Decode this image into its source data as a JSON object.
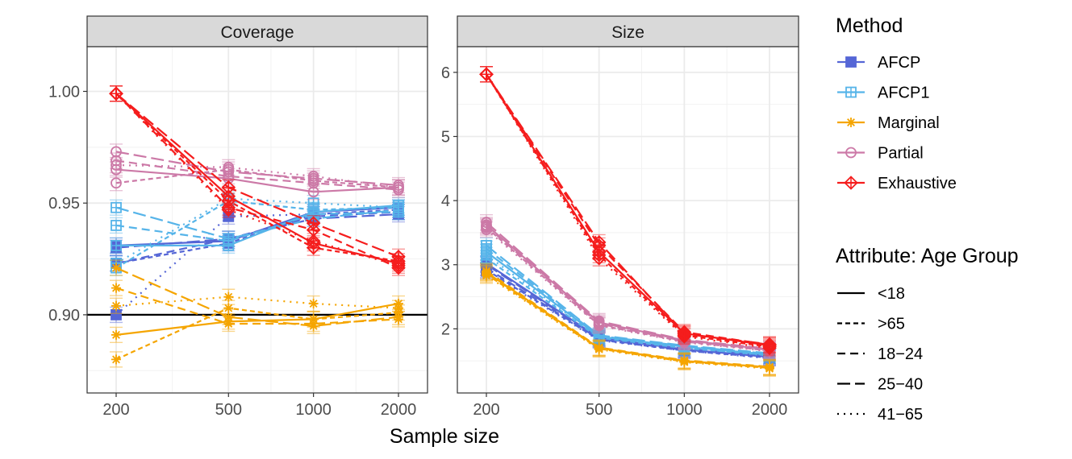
{
  "chart_data": {
    "type": "line",
    "xlabel": "Sample size",
    "x": [
      200,
      500,
      1000,
      2000
    ],
    "x_scale": "log",
    "panels": [
      {
        "title": "Coverage",
        "ylim": [
          0.865,
          1.02
        ],
        "yticks": [
          "0.90",
          "0.95",
          "1.00"
        ],
        "reference_line": 0.9,
        "series": [
          {
            "method": "AFCP",
            "group": "<18",
            "values": [
              0.931,
              0.933,
              0.946,
              0.948
            ]
          },
          {
            "method": "AFCP",
            "group": ">65",
            "values": [
              0.923,
              0.932,
              0.945,
              0.947
            ]
          },
          {
            "method": "AFCP",
            "group": "18-24",
            "values": [
              0.923,
              0.934,
              0.944,
              0.946
            ]
          },
          {
            "method": "AFCP",
            "group": "25-40",
            "values": [
              0.93,
              0.934,
              0.943,
              0.945
            ]
          },
          {
            "method": "AFCP",
            "group": "41-65",
            "values": [
              0.9,
              0.944,
              0.945,
              0.946
            ]
          },
          {
            "method": "AFCP1",
            "group": "<18",
            "values": [
              0.931,
              0.931,
              0.946,
              0.949
            ]
          },
          {
            "method": "AFCP1",
            "group": ">65",
            "values": [
              0.921,
              0.951,
              0.947,
              0.948
            ]
          },
          {
            "method": "AFCP1",
            "group": "18-24",
            "values": [
              0.94,
              0.933,
              0.945,
              0.946
            ]
          },
          {
            "method": "AFCP1",
            "group": "25-40",
            "values": [
              0.948,
              0.934,
              0.943,
              0.947
            ]
          },
          {
            "method": "AFCP1",
            "group": "41-65",
            "values": [
              0.923,
              0.952,
              0.95,
              0.948
            ]
          },
          {
            "method": "Marginal",
            "group": "<18",
            "values": [
              0.891,
              0.897,
              0.898,
              0.905
            ]
          },
          {
            "method": "Marginal",
            "group": ">65",
            "values": [
              0.88,
              0.903,
              0.898,
              0.901
            ]
          },
          {
            "method": "Marginal",
            "group": "18-24",
            "values": [
              0.912,
              0.896,
              0.896,
              0.898
            ]
          },
          {
            "method": "Marginal",
            "group": "25-40",
            "values": [
              0.921,
              0.899,
              0.895,
              0.899
            ]
          },
          {
            "method": "Marginal",
            "group": "41-65",
            "values": [
              0.904,
              0.908,
              0.905,
              0.903
            ]
          },
          {
            "method": "Partial",
            "group": "<18",
            "values": [
              0.965,
              0.961,
              0.955,
              0.957
            ]
          },
          {
            "method": "Partial",
            "group": ">65",
            "values": [
              0.959,
              0.965,
              0.96,
              0.957
            ]
          },
          {
            "method": "Partial",
            "group": "18-24",
            "values": [
              0.969,
              0.962,
              0.959,
              0.956
            ]
          },
          {
            "method": "Partial",
            "group": "25-40",
            "values": [
              0.973,
              0.964,
              0.961,
              0.958
            ]
          },
          {
            "method": "Partial",
            "group": "41-65",
            "values": [
              0.967,
              0.966,
              0.962,
              0.957
            ]
          },
          {
            "method": "Exhaustive",
            "group": "<18",
            "values": [
              0.999,
              0.953,
              0.932,
              0.923
            ]
          },
          {
            "method": "Exhaustive",
            "group": ">65",
            "values": [
              0.999,
              0.951,
              0.93,
              0.924
            ]
          },
          {
            "method": "Exhaustive",
            "group": "18-24",
            "values": [
              0.999,
              0.948,
              0.938,
              0.921
            ]
          },
          {
            "method": "Exhaustive",
            "group": "25-40",
            "values": [
              0.999,
              0.957,
              0.941,
              0.926
            ]
          },
          {
            "method": "Exhaustive",
            "group": "41-65",
            "values": [
              0.999,
              0.947,
              0.933,
              0.922
            ]
          }
        ]
      },
      {
        "title": "Size",
        "ylim": [
          1.0,
          6.4
        ],
        "yticks": [
          "2",
          "3",
          "4",
          "5",
          "6"
        ],
        "series": [
          {
            "method": "AFCP",
            "group": "<18",
            "values": [
              3.02,
              1.86,
              1.68,
              1.56
            ]
          },
          {
            "method": "AFCP",
            "group": ">65",
            "values": [
              2.92,
              1.83,
              1.66,
              1.55
            ]
          },
          {
            "method": "AFCP",
            "group": "18-24",
            "values": [
              2.95,
              1.84,
              1.67,
              1.57
            ]
          },
          {
            "method": "AFCP",
            "group": "25-40",
            "values": [
              3.0,
              1.85,
              1.69,
              1.58
            ]
          },
          {
            "method": "AFCP",
            "group": "41-65",
            "values": [
              2.9,
              1.82,
              1.66,
              1.54
            ]
          },
          {
            "method": "AFCP1",
            "group": "<18",
            "values": [
              3.2,
              1.88,
              1.72,
              1.6
            ]
          },
          {
            "method": "AFCP1",
            "group": ">65",
            "values": [
              3.1,
              1.86,
              1.7,
              1.59
            ]
          },
          {
            "method": "AFCP1",
            "group": "18-24",
            "values": [
              3.25,
              1.89,
              1.73,
              1.61
            ]
          },
          {
            "method": "AFCP1",
            "group": "25-40",
            "values": [
              3.3,
              1.9,
              1.74,
              1.62
            ]
          },
          {
            "method": "AFCP1",
            "group": "41-65",
            "values": [
              3.15,
              1.87,
              1.71,
              1.58
            ]
          },
          {
            "method": "Marginal",
            "group": "<18",
            "values": [
              2.88,
              1.7,
              1.5,
              1.4
            ]
          },
          {
            "method": "Marginal",
            "group": ">65",
            "values": [
              2.85,
              1.69,
              1.49,
              1.39
            ]
          },
          {
            "method": "Marginal",
            "group": "18-24",
            "values": [
              2.9,
              1.71,
              1.51,
              1.41
            ]
          },
          {
            "method": "Marginal",
            "group": "25-40",
            "values": [
              2.87,
              1.7,
              1.5,
              1.4
            ]
          },
          {
            "method": "Marginal",
            "group": "41-65",
            "values": [
              2.83,
              1.68,
              1.48,
              1.38
            ]
          },
          {
            "method": "Partial",
            "group": "<18",
            "values": [
              3.62,
              2.1,
              1.82,
              1.68
            ]
          },
          {
            "method": "Partial",
            "group": ">65",
            "values": [
              3.58,
              2.06,
              1.8,
              1.66
            ]
          },
          {
            "method": "Partial",
            "group": "18-24",
            "values": [
              3.6,
              2.08,
              1.81,
              1.67
            ]
          },
          {
            "method": "Partial",
            "group": "25-40",
            "values": [
              3.66,
              2.12,
              1.83,
              1.69
            ]
          },
          {
            "method": "Partial",
            "group": "41-65",
            "values": [
              3.55,
              2.05,
              1.79,
              1.65
            ]
          },
          {
            "method": "Exhaustive",
            "group": "<18",
            "values": [
              5.97,
              3.2,
              1.93,
              1.74
            ]
          },
          {
            "method": "Exhaustive",
            "group": ">65",
            "values": [
              5.97,
              3.15,
              1.9,
              1.72
            ]
          },
          {
            "method": "Exhaustive",
            "group": "18-24",
            "values": [
              5.97,
              3.3,
              1.95,
              1.75
            ]
          },
          {
            "method": "Exhaustive",
            "group": "25-40",
            "values": [
              5.97,
              3.35,
              1.92,
              1.76
            ]
          },
          {
            "method": "Exhaustive",
            "group": "41-65",
            "values": [
              5.97,
              3.1,
              1.88,
              1.7
            ]
          }
        ]
      }
    ],
    "legend_methods": {
      "title": "Method",
      "items": [
        {
          "label": "AFCP",
          "color": "#5566d6",
          "marker": "square"
        },
        {
          "label": "AFCP1",
          "color": "#56b4e9",
          "marker": "square-plus"
        },
        {
          "label": "Marginal",
          "color": "#f5a500",
          "marker": "asterisk"
        },
        {
          "label": "Partial",
          "color": "#cc79a7",
          "marker": "circle"
        },
        {
          "label": "Exhaustive",
          "color": "#f51d1d",
          "marker": "diamond-plus"
        }
      ]
    },
    "legend_groups": {
      "title": "Attribute: Age Group",
      "items": [
        {
          "label": "<18",
          "linetype": "solid"
        },
        {
          "label": ">65",
          "linetype": "dashed-short"
        },
        {
          "label": "18−24",
          "linetype": "dashed"
        },
        {
          "label": "25−40",
          "linetype": "dashed-long"
        },
        {
          "label": "41−65",
          "linetype": "dotted"
        }
      ]
    },
    "legend_position": "right",
    "grid": true
  }
}
